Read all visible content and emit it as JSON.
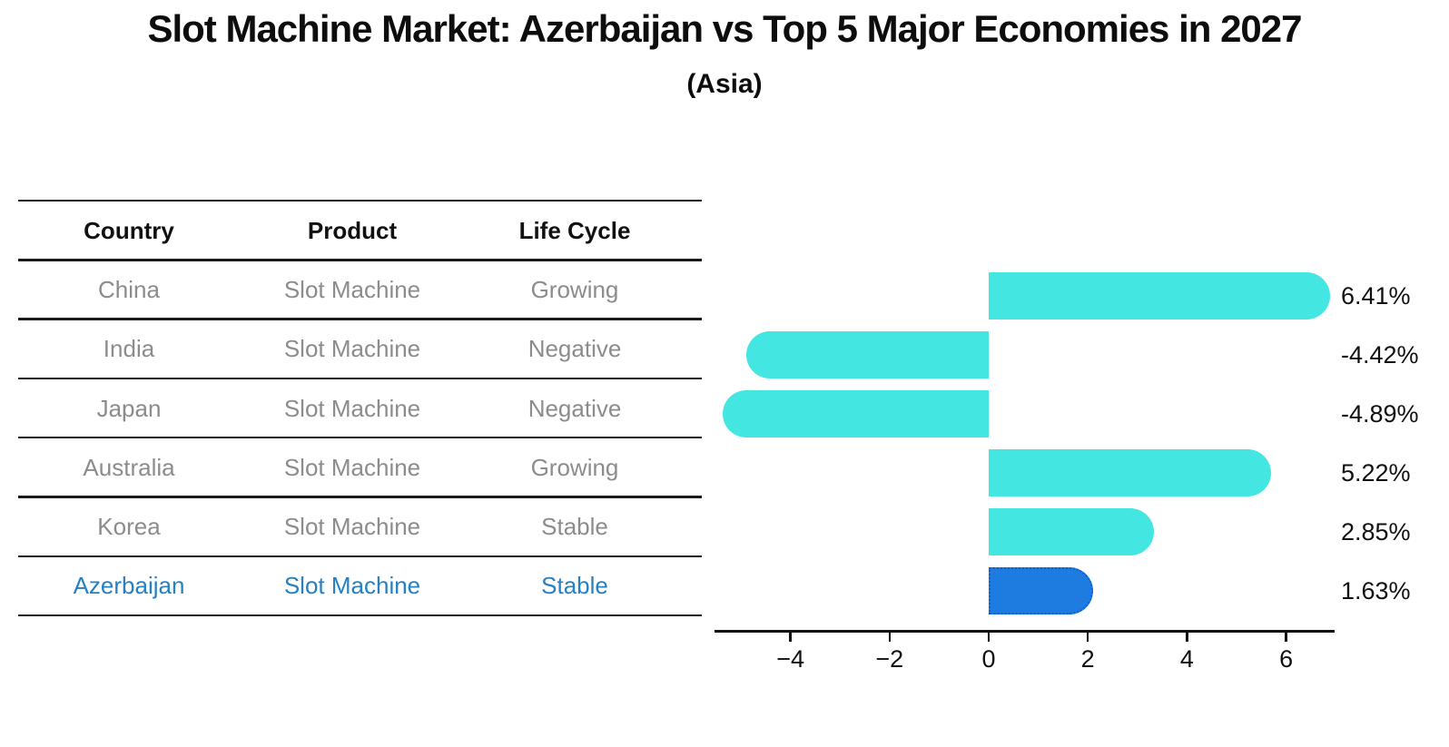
{
  "title": "Slot Machine Market: Azerbaijan vs Top 5 Major Economies in 2027",
  "subtitle": "(Asia)",
  "table": {
    "columns": [
      "Country",
      "Product",
      "Life Cycle"
    ],
    "rows": [
      {
        "country": "China",
        "product": "Slot Machine",
        "life_cycle": "Growing",
        "highlight": false
      },
      {
        "country": "India",
        "product": "Slot Machine",
        "life_cycle": "Negative",
        "highlight": false
      },
      {
        "country": "Japan",
        "product": "Slot Machine",
        "life_cycle": "Negative",
        "highlight": false
      },
      {
        "country": "Australia",
        "product": "Slot Machine",
        "life_cycle": "Growing",
        "highlight": false
      },
      {
        "country": "Korea",
        "product": "Slot Machine",
        "life_cycle": "Stable",
        "highlight": false
      },
      {
        "country": "Azerbaijan",
        "product": "Slot Machine",
        "life_cycle": "Stable",
        "highlight": true
      }
    ]
  },
  "chart_data": {
    "type": "bar",
    "orientation": "horizontal",
    "title": "Slot Machine Market: Azerbaijan vs Top 5 Major Economies in 2027",
    "subtitle": "(Asia)",
    "categories": [
      "China",
      "India",
      "Japan",
      "Australia",
      "Korea",
      "Azerbaijan"
    ],
    "values": [
      6.41,
      -4.42,
      -4.89,
      5.22,
      2.85,
      1.63
    ],
    "value_labels": [
      "6.41%",
      "-4.42%",
      "-4.89%",
      "5.22%",
      "2.85%",
      "1.63%"
    ],
    "unit": "%",
    "x_ticks": [
      -4,
      -2,
      0,
      2,
      4,
      6
    ],
    "x_tick_labels": [
      "−4",
      "−2",
      "0",
      "2",
      "4",
      "6"
    ],
    "xlim": [
      -5.55,
      6.98
    ],
    "grid": false,
    "legend": "none",
    "highlight_category": "Azerbaijan",
    "colors": {
      "bar": "#43E6E1",
      "highlight_bar": "#1E7CE0",
      "highlight_border": "#0D5FD0",
      "highlight_text": "#2680C2",
      "row_text": "#8C8C8C",
      "header_text": "#111111",
      "value_text": "#111111",
      "axis": "#111111"
    }
  }
}
